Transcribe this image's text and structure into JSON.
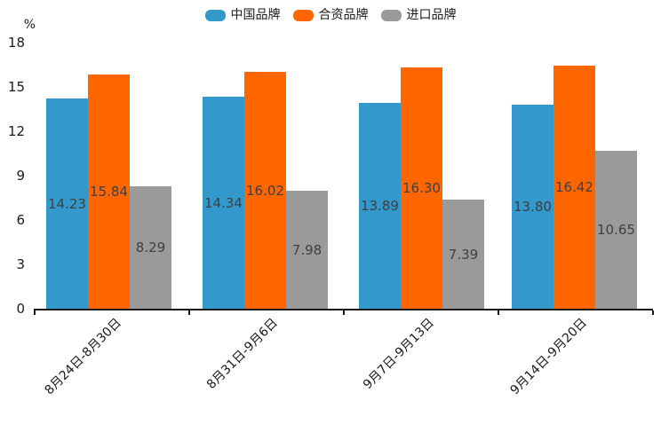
{
  "chart_data": {
    "type": "bar",
    "title": "",
    "ylabel": "%",
    "ylim": [
      0,
      18
    ],
    "yticks": [
      0,
      3,
      6,
      9,
      12,
      15,
      18
    ],
    "grid": false,
    "legend_position": "top-center",
    "categories": [
      "8月24日-8月30日",
      "8月31日-9月6日",
      "9月7日-9月13日",
      "9月14日-9月20日"
    ],
    "series": [
      {
        "name": "中国品牌",
        "color": "#3398cb",
        "values": [
          14.23,
          14.34,
          13.89,
          13.8
        ],
        "value_labels": [
          "14.23",
          "14.34",
          "13.89",
          "13.80"
        ]
      },
      {
        "name": "合资品牌",
        "color": "#ff6600",
        "values": [
          15.84,
          16.02,
          16.3,
          16.42
        ],
        "value_labels": [
          "15.84",
          "16.02",
          "16.30",
          "16.42"
        ]
      },
      {
        "name": "进口品牌",
        "color": "#9a9a9a",
        "values": [
          8.29,
          7.98,
          7.39,
          10.65
        ],
        "value_labels": [
          "8.29",
          "7.98",
          "7.39",
          "10.65"
        ]
      }
    ],
    "value_label_color": "#404040",
    "axis_color": "#1a1a1a"
  }
}
